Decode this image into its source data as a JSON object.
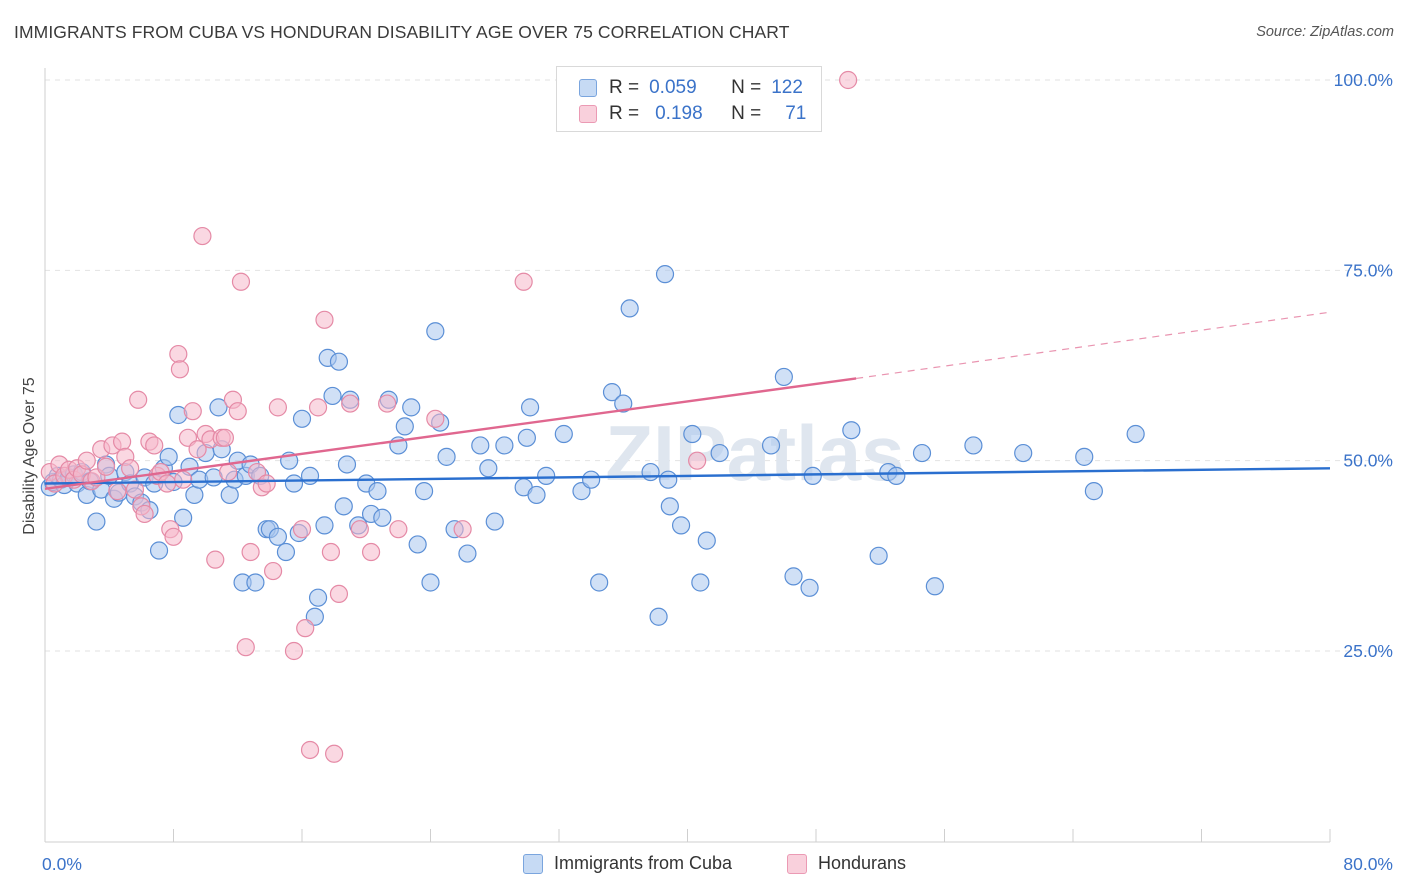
{
  "title": "IMMIGRANTS FROM CUBA VS HONDURAN DISABILITY AGE OVER 75 CORRELATION CHART",
  "source": "Source: ZipAtlas.com",
  "watermark": "ZIPatlas",
  "legend": {
    "rows": [
      {
        "r_label": "R =",
        "r_value": "0.059",
        "n_label": "N =",
        "n_value": "122",
        "color": "#a9c6ee"
      },
      {
        "r_label": "R =",
        "r_value": "0.198",
        "n_label": "N =",
        "n_value": "71",
        "color": "#f5b8cb"
      }
    ]
  },
  "bottom_legend": [
    {
      "label": "Immigrants from Cuba",
      "color": "#a9c6ee"
    },
    {
      "label": "Hondurans",
      "color": "#f5b8cb"
    }
  ],
  "chart_data": {
    "type": "scatter",
    "title": "IMMIGRANTS FROM CUBA VS HONDURAN DISABILITY AGE OVER 75 CORRELATION CHART",
    "xlabel": "",
    "ylabel": "Disability Age Over 75",
    "xlim": [
      0,
      80
    ],
    "ylim": [
      0,
      102
    ],
    "x_tick_labels": [
      "0.0%",
      "80.0%"
    ],
    "y_ticks": [
      25,
      50,
      75,
      100
    ],
    "y_tick_labels": [
      "25.0%",
      "50.0%",
      "75.0%",
      "100.0%"
    ],
    "grid": true,
    "legend_position": "top-center",
    "colors": {
      "cuba": "#3b73c9",
      "hondurans": "#e0678f"
    },
    "series": [
      {
        "name": "Immigrants from Cuba",
        "color": "#a9c6ee",
        "stroke": "#5b8fd6",
        "trend": {
          "x0": 0,
          "y0": 47.0,
          "x1": 80,
          "y1": 49.0,
          "color": "#2a6fcf"
        },
        "points": [
          [
            0.3,
            46.5
          ],
          [
            0.5,
            47.2
          ],
          [
            0.8,
            48.0
          ],
          [
            1.0,
            47.5
          ],
          [
            1.2,
            46.8
          ],
          [
            1.5,
            47.8
          ],
          [
            1.8,
            48.2
          ],
          [
            2.0,
            47.0
          ],
          [
            2.3,
            48.5
          ],
          [
            2.6,
            45.5
          ],
          [
            2.8,
            47.3
          ],
          [
            3.2,
            42.0
          ],
          [
            3.5,
            46.2
          ],
          [
            3.8,
            49.5
          ],
          [
            4.0,
            48.0
          ],
          [
            4.3,
            45.0
          ],
          [
            4.6,
            45.8
          ],
          [
            5.0,
            48.5
          ],
          [
            5.3,
            47.0
          ],
          [
            5.6,
            45.3
          ],
          [
            6.0,
            44.5
          ],
          [
            6.2,
            47.8
          ],
          [
            6.5,
            43.5
          ],
          [
            6.8,
            47.0
          ],
          [
            7.1,
            38.2
          ],
          [
            7.4,
            49.0
          ],
          [
            7.7,
            50.5
          ],
          [
            8.0,
            47.2
          ],
          [
            8.3,
            56.0
          ],
          [
            8.6,
            42.5
          ],
          [
            9.0,
            49.2
          ],
          [
            9.3,
            45.5
          ],
          [
            9.6,
            47.5
          ],
          [
            10.0,
            51.0
          ],
          [
            10.5,
            47.8
          ],
          [
            10.8,
            57.0
          ],
          [
            11.0,
            51.5
          ],
          [
            11.5,
            45.5
          ],
          [
            11.8,
            47.5
          ],
          [
            12.0,
            50.0
          ],
          [
            12.3,
            34.0
          ],
          [
            12.5,
            48.0
          ],
          [
            12.8,
            49.5
          ],
          [
            13.1,
            34.0
          ],
          [
            13.4,
            48.0
          ],
          [
            13.8,
            41.0
          ],
          [
            14.0,
            41.0
          ],
          [
            14.5,
            40.0
          ],
          [
            15.0,
            38.0
          ],
          [
            15.2,
            50.0
          ],
          [
            15.5,
            47.0
          ],
          [
            15.8,
            40.5
          ],
          [
            16.0,
            55.5
          ],
          [
            16.5,
            48.0
          ],
          [
            16.8,
            29.5
          ],
          [
            17.0,
            32.0
          ],
          [
            17.4,
            41.5
          ],
          [
            17.6,
            63.5
          ],
          [
            17.9,
            58.5
          ],
          [
            18.3,
            63.0
          ],
          [
            18.6,
            44.0
          ],
          [
            18.8,
            49.5
          ],
          [
            19.0,
            58.0
          ],
          [
            19.5,
            41.5
          ],
          [
            20.0,
            47.0
          ],
          [
            20.3,
            43.0
          ],
          [
            20.7,
            46.0
          ],
          [
            21.0,
            42.5
          ],
          [
            21.4,
            58.0
          ],
          [
            22.0,
            52.0
          ],
          [
            22.4,
            54.5
          ],
          [
            22.8,
            57.0
          ],
          [
            23.2,
            39.0
          ],
          [
            23.6,
            46.0
          ],
          [
            24.0,
            34.0
          ],
          [
            24.3,
            67.0
          ],
          [
            24.6,
            55.0
          ],
          [
            25.0,
            50.5
          ],
          [
            25.5,
            41.0
          ],
          [
            26.3,
            37.8
          ],
          [
            27.1,
            52.0
          ],
          [
            27.6,
            49.0
          ],
          [
            28.0,
            42.0
          ],
          [
            28.6,
            52.0
          ],
          [
            29.8,
            46.5
          ],
          [
            30.0,
            53.0
          ],
          [
            30.2,
            57.0
          ],
          [
            30.6,
            45.5
          ],
          [
            31.2,
            48.0
          ],
          [
            32.3,
            53.5
          ],
          [
            33.4,
            46.0
          ],
          [
            34.0,
            47.5
          ],
          [
            34.5,
            34.0
          ],
          [
            35.3,
            59.0
          ],
          [
            36.0,
            57.5
          ],
          [
            37.7,
            48.5
          ],
          [
            38.2,
            29.5
          ],
          [
            38.6,
            74.5
          ],
          [
            38.8,
            47.5
          ],
          [
            38.9,
            44.0
          ],
          [
            39.6,
            41.5
          ],
          [
            40.3,
            53.5
          ],
          [
            40.8,
            34.0
          ],
          [
            41.2,
            39.5
          ],
          [
            42.0,
            51.0
          ],
          [
            45.2,
            52.0
          ],
          [
            46.0,
            61.0
          ],
          [
            46.6,
            34.8
          ],
          [
            47.6,
            33.3
          ],
          [
            47.8,
            48.0
          ],
          [
            50.2,
            54.0
          ],
          [
            51.9,
            37.5
          ],
          [
            52.5,
            48.5
          ],
          [
            53.0,
            48.0
          ],
          [
            54.6,
            51.0
          ],
          [
            55.4,
            33.5
          ],
          [
            57.8,
            52.0
          ],
          [
            60.9,
            51.0
          ],
          [
            64.7,
            50.5
          ],
          [
            65.3,
            46.0
          ],
          [
            67.9,
            53.5
          ],
          [
            36.4,
            70.0
          ]
        ]
      },
      {
        "name": "Hondurans",
        "color": "#f5b8cb",
        "stroke": "#e58aa6",
        "trend": {
          "x0": 0,
          "y0": 46.3,
          "x1": 50.5,
          "y1": 60.8,
          "color": "#e0678f",
          "dashed_to": {
            "x": 80,
            "y": 69.5
          }
        },
        "points": [
          [
            0.3,
            48.5
          ],
          [
            0.6,
            47.0
          ],
          [
            0.9,
            49.5
          ],
          [
            1.2,
            48.0
          ],
          [
            1.5,
            48.8
          ],
          [
            1.8,
            47.5
          ],
          [
            2.0,
            49.0
          ],
          [
            2.3,
            48.2
          ],
          [
            2.6,
            50.0
          ],
          [
            2.9,
            47.3
          ],
          [
            3.2,
            47.8
          ],
          [
            3.5,
            51.5
          ],
          [
            3.8,
            49.2
          ],
          [
            4.2,
            52.0
          ],
          [
            4.5,
            46.0
          ],
          [
            4.8,
            52.5
          ],
          [
            5.0,
            50.5
          ],
          [
            5.3,
            49.0
          ],
          [
            5.6,
            46.2
          ],
          [
            5.8,
            58.0
          ],
          [
            6.0,
            44.0
          ],
          [
            6.2,
            43.0
          ],
          [
            6.5,
            52.5
          ],
          [
            6.8,
            52.0
          ],
          [
            7.0,
            48.0
          ],
          [
            7.2,
            48.5
          ],
          [
            7.6,
            47.0
          ],
          [
            7.8,
            41.0
          ],
          [
            8.0,
            40.0
          ],
          [
            8.3,
            64.0
          ],
          [
            8.4,
            62.0
          ],
          [
            8.6,
            47.5
          ],
          [
            8.9,
            53.0
          ],
          [
            9.2,
            56.5
          ],
          [
            9.5,
            51.5
          ],
          [
            9.8,
            79.5
          ],
          [
            10.0,
            53.5
          ],
          [
            10.3,
            52.8
          ],
          [
            10.6,
            37.0
          ],
          [
            11.0,
            53.0
          ],
          [
            11.2,
            53.0
          ],
          [
            11.4,
            48.5
          ],
          [
            11.7,
            58.0
          ],
          [
            12.0,
            56.5
          ],
          [
            12.2,
            73.5
          ],
          [
            12.5,
            25.5
          ],
          [
            12.8,
            38.0
          ],
          [
            13.2,
            48.5
          ],
          [
            13.5,
            46.5
          ],
          [
            13.8,
            47.0
          ],
          [
            14.2,
            35.5
          ],
          [
            14.5,
            57.0
          ],
          [
            15.5,
            25.0
          ],
          [
            16.0,
            41.0
          ],
          [
            16.2,
            28.0
          ],
          [
            16.5,
            12.0
          ],
          [
            17.0,
            57.0
          ],
          [
            17.4,
            68.5
          ],
          [
            17.8,
            38.0
          ],
          [
            18.0,
            11.5
          ],
          [
            18.3,
            32.5
          ],
          [
            19.0,
            57.5
          ],
          [
            19.6,
            41.0
          ],
          [
            20.3,
            38.0
          ],
          [
            21.3,
            57.5
          ],
          [
            22.0,
            41.0
          ],
          [
            24.3,
            55.5
          ],
          [
            26.0,
            41.0
          ],
          [
            29.8,
            73.5
          ],
          [
            40.6,
            50.0
          ],
          [
            50.0,
            100.0
          ]
        ]
      }
    ]
  }
}
